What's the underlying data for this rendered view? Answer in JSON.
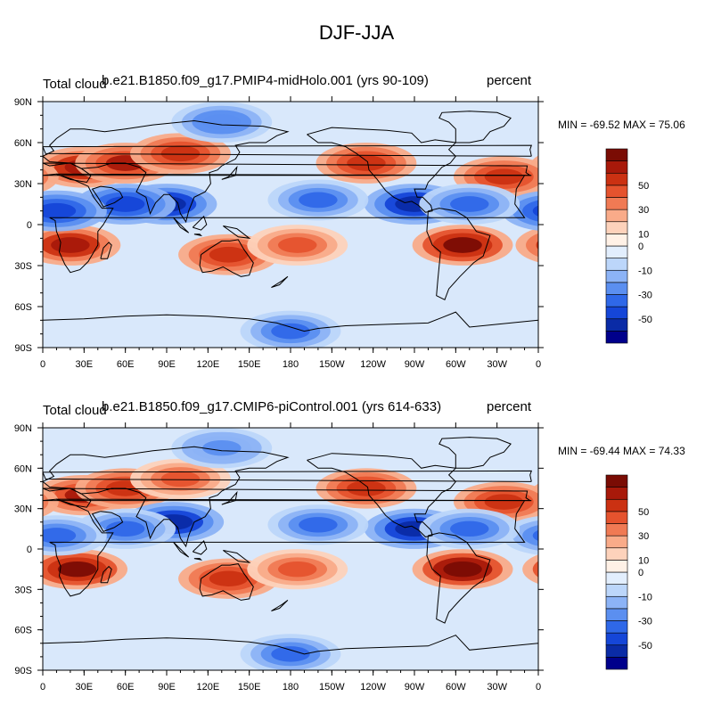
{
  "main_title": "DJF-JJA",
  "colors": {
    "levels": [
      "#00008b",
      "#0a2ba6",
      "#1546d8",
      "#2f68e8",
      "#5b8ff0",
      "#8cb3f6",
      "#bcd6fa",
      "#e2eefd",
      "#fff1e6",
      "#fdd2bb",
      "#f9ab89",
      "#f07a54",
      "#e5532e",
      "#cb3112",
      "#a8190a",
      "#7a0c04"
    ],
    "ocean_base": "#d9e8fb",
    "coast": "#000000"
  },
  "chart_data": [
    {
      "type": "heatmap",
      "title_left": "Total cloud",
      "title_center": "b.e21.B1850.f09_g17.PMIP4-midHolo.001 (yrs 90-109)",
      "title_right": "percent",
      "minmax": "MIN = -69.52 MAX =  75.06",
      "x_ticks": [
        "0",
        "30E",
        "60E",
        "90E",
        "120E",
        "150E",
        "180",
        "150W",
        "120W",
        "90W",
        "60W",
        "30W",
        "0"
      ],
      "y_ticks": [
        "90N",
        "60N",
        "30N",
        "0",
        "30S",
        "60S",
        "90S"
      ],
      "colorbar_labels": [
        "50",
        "30",
        "10",
        "0",
        "-10",
        "-30",
        "-50"
      ],
      "xlim": [
        0,
        360
      ],
      "ylim": [
        -90,
        90
      ],
      "min": -69.52,
      "max": 75.06,
      "blobs": [
        {
          "lon": 30,
          "lat": 42,
          "value": 55
        },
        {
          "lon": 60,
          "lat": 45,
          "value": 50
        },
        {
          "lon": 100,
          "lat": 52,
          "value": 40
        },
        {
          "lon": 20,
          "lat": -15,
          "value": 55
        },
        {
          "lon": 135,
          "lat": -22,
          "value": 45
        },
        {
          "lon": 305,
          "lat": -15,
          "value": 65
        },
        {
          "lon": 235,
          "lat": 45,
          "value": 45
        },
        {
          "lon": 335,
          "lat": 35,
          "value": 45
        },
        {
          "lon": 185,
          "lat": -15,
          "value": 30
        },
        {
          "lon": 90,
          "lat": 15,
          "value": -60
        },
        {
          "lon": 60,
          "lat": 15,
          "value": -45
        },
        {
          "lon": 270,
          "lat": 15,
          "value": -55
        },
        {
          "lon": 200,
          "lat": 18,
          "value": -35
        },
        {
          "lon": 10,
          "lat": 10,
          "value": -45
        },
        {
          "lon": 180,
          "lat": -78,
          "value": -40
        },
        {
          "lon": 130,
          "lat": 75,
          "value": -30
        },
        {
          "lon": 310,
          "lat": 15,
          "value": -40
        }
      ]
    },
    {
      "type": "heatmap",
      "title_left": "Total cloud",
      "title_center": "b.e21.B1850.f09_g17.CMIP6-piControl.001 (yrs 614-633)",
      "title_right": "percent",
      "minmax": "MIN = -69.44 MAX =  74.33",
      "x_ticks": [
        "0",
        "30E",
        "60E",
        "90E",
        "120E",
        "150E",
        "180",
        "150W",
        "120W",
        "90W",
        "60W",
        "30W",
        "0"
      ],
      "y_ticks": [
        "90N",
        "60N",
        "30N",
        "0",
        "30S",
        "60S",
        "90S"
      ],
      "colorbar_labels": [
        "50",
        "30",
        "10",
        "0",
        "-10",
        "-30",
        "-50"
      ],
      "xlim": [
        0,
        360
      ],
      "ylim": [
        -90,
        90
      ],
      "min": -69.44,
      "max": 74.33,
      "blobs": [
        {
          "lon": 30,
          "lat": 40,
          "value": 50
        },
        {
          "lon": 60,
          "lat": 45,
          "value": 45
        },
        {
          "lon": 100,
          "lat": 52,
          "value": 35
        },
        {
          "lon": 25,
          "lat": -15,
          "value": 65
        },
        {
          "lon": 135,
          "lat": -22,
          "value": 45
        },
        {
          "lon": 305,
          "lat": -15,
          "value": 70
        },
        {
          "lon": 235,
          "lat": 45,
          "value": 45
        },
        {
          "lon": 335,
          "lat": 35,
          "value": 40
        },
        {
          "lon": 185,
          "lat": -15,
          "value": 30
        },
        {
          "lon": 95,
          "lat": 20,
          "value": -55
        },
        {
          "lon": 60,
          "lat": 15,
          "value": -40
        },
        {
          "lon": 270,
          "lat": 15,
          "value": -60
        },
        {
          "lon": 200,
          "lat": 18,
          "value": -35
        },
        {
          "lon": 10,
          "lat": 10,
          "value": -40
        },
        {
          "lon": 180,
          "lat": -78,
          "value": -40
        },
        {
          "lon": 130,
          "lat": 75,
          "value": -25
        },
        {
          "lon": 310,
          "lat": 15,
          "value": -35
        }
      ]
    }
  ]
}
